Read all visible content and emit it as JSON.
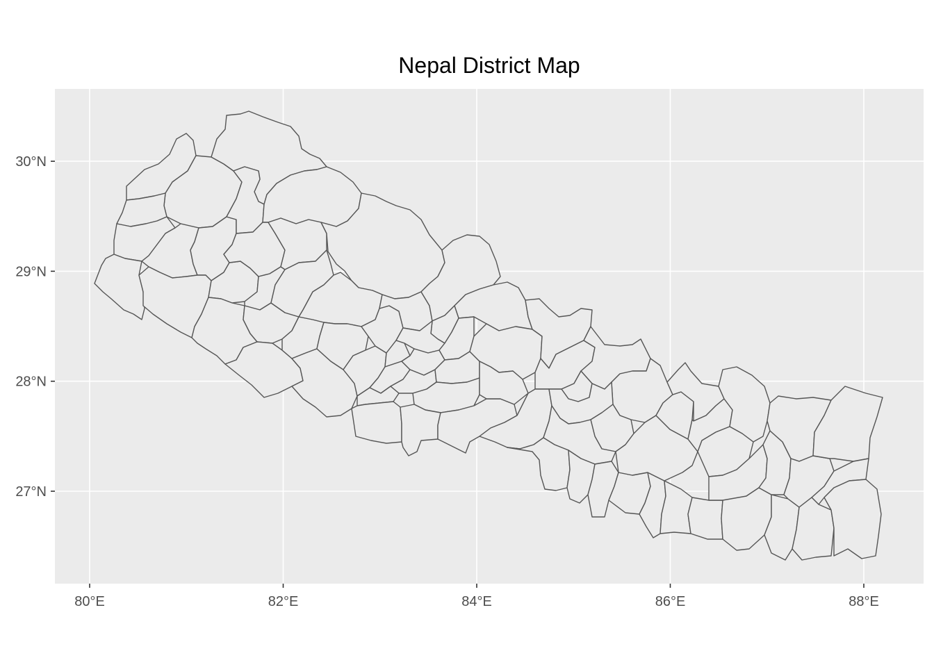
{
  "chart_data": {
    "type": "map",
    "title": "Nepal District Map",
    "xlabel": "",
    "ylabel": "",
    "x_ticks": [
      {
        "value": 80,
        "label": "80°E"
      },
      {
        "value": 82,
        "label": "82°E"
      },
      {
        "value": 84,
        "label": "84°E"
      },
      {
        "value": 86,
        "label": "86°E"
      },
      {
        "value": 88,
        "label": "88°E"
      }
    ],
    "y_ticks": [
      {
        "value": 27,
        "label": "27°N"
      },
      {
        "value": 28,
        "label": "28°N"
      },
      {
        "value": 29,
        "label": "29°N"
      },
      {
        "value": 30,
        "label": "30°N"
      }
    ],
    "xlim": [
      79.64,
      88.59
    ],
    "ylim": [
      26.15,
      30.65
    ],
    "grid": true,
    "legend": "none",
    "panel_color": "#ebebeb",
    "district_fill": "#ebebeb",
    "district_stroke": "#555555",
    "district_count": 75
  }
}
